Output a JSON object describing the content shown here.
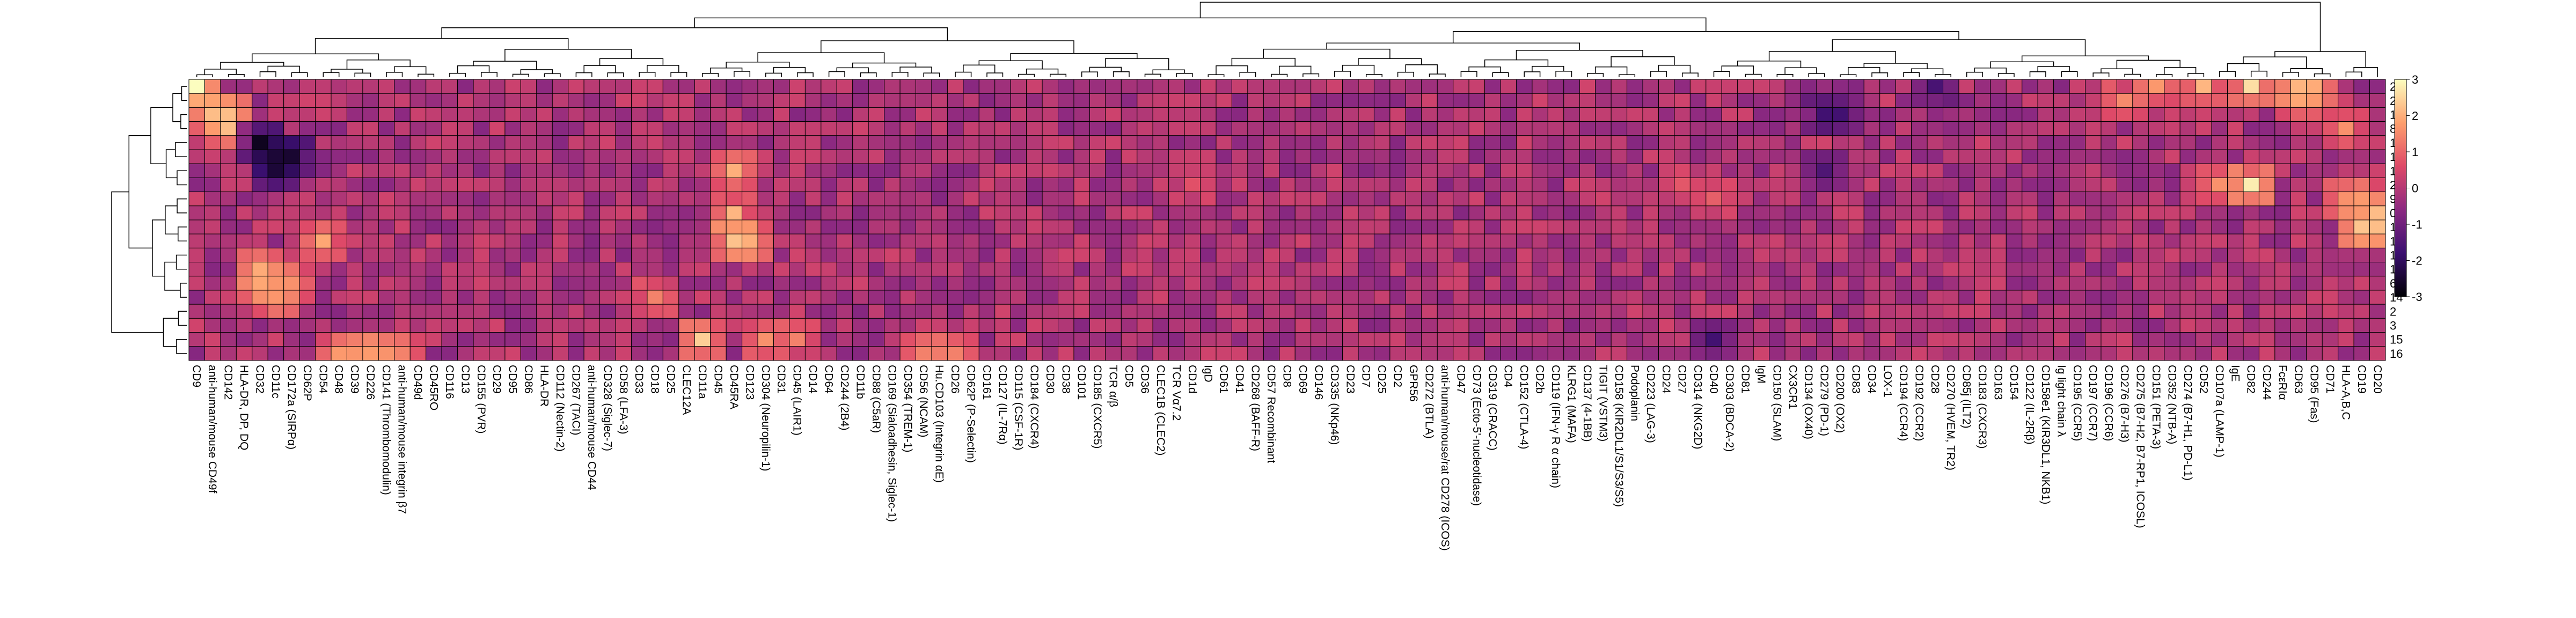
{
  "chart_data": {
    "type": "heatmap",
    "title": "",
    "xlabel": "",
    "ylabel": "",
    "colorbar": {
      "ticks": [
        "3",
        "2",
        "1",
        "0",
        "-1",
        "-2",
        "-3"
      ],
      "range": [
        -3,
        3
      ],
      "colors": [
        "#000004",
        "#3b0f70",
        "#8c2981",
        "#de4968",
        "#fe9f6d",
        "#fcfdbf"
      ]
    },
    "rows": [
      "20",
      "21",
      "17",
      "8",
      "18",
      "1",
      "12",
      "22",
      "9",
      "0",
      "10",
      "13",
      "19",
      "11",
      "6",
      "14",
      "2",
      "3",
      "15",
      "16"
    ],
    "columns": [
      "CD9",
      "anti-human/mouse CD49f",
      "CD142",
      "HLA-DR, DP, DQ",
      "CD32",
      "CD11c",
      "CD172a (SIRPα)",
      "CD62P",
      "CD54",
      "CD48",
      "CD39",
      "CD226",
      "CD141 (Thrombomodulin)",
      "anti-human/mouse integrin β7",
      "CD49d",
      "CD45RO",
      "CD116",
      "CD13",
      "CD155 (PVR)",
      "CD29",
      "CD95",
      "CD86",
      "HLA-DR",
      "CD112 (Nectin-2)",
      "CD267 (TACI)",
      "anti-human/mouse CD44",
      "CD328 (Siglec-7)",
      "CD58 (LFA-3)",
      "CD33",
      "CD18",
      "CD25",
      "CLEC12A",
      "CD11a",
      "CD45",
      "CD45RA",
      "CD123",
      "CD304 (Neuropilin-1)",
      "CD31",
      "CD45 (LAIR1)",
      "CD14",
      "CD64",
      "CD244 (2B4)",
      "CD11b",
      "CD88 (C5aR)",
      "CD169 (Sialoadhesin, Siglec-1)",
      "CD354 (TREM-1)",
      "CD56 (NCAM)",
      "Hu.CD103 (Integrin αE)",
      "CD26",
      "CD62P (P-Selectin)",
      "CD161",
      "CD127 (IL-7Rα)",
      "CD115 (CSF-1R)",
      "CD184 (CXCR4)",
      "CD30",
      "CD38",
      "CD101",
      "CD185 (CXCR5)",
      "TCR α/β",
      "CD5",
      "CD36",
      "CLEC1B (CLEC2)",
      "TCR Vα7.2",
      "CD1d",
      "IgD",
      "CD61",
      "CD41",
      "CD268 (BAFF-R)",
      "CD57 Recombinant",
      "CD8",
      "CD69",
      "CD146",
      "CD335 (NKp46)",
      "CD23",
      "CD7",
      "CD25",
      "CD2",
      "GPR56",
      "CD272 (BTLA)",
      "anti-human/mouse/rat CD278 (ICOS)",
      "CD47",
      "CD73 (Ecto-5'-nucleotidase)",
      "CD319 (CRACC)",
      "CD4",
      "CD152 (CTLA-4)",
      "CD2b",
      "CD119 (IFN-γ R α chain)",
      "KLRG1 (MAFA)",
      "CD137 (4-1BB)",
      "TIGIT (VSTM3)",
      "CD158 (KIR2DL1/S1/S3/S5)",
      "Podoplanin",
      "CD223 (LAG-3)",
      "CD24",
      "CD27",
      "CD314 (NKG2D)",
      "CD40",
      "CD303 (BDCA-2)",
      "CD81",
      "IgM",
      "CD150 (SLAM)",
      "CX3CR1",
      "CD134 (OX40)",
      "CD279 (PD-1)",
      "CD200 (OX2)",
      "CD83",
      "CD34",
      "LOX-1",
      "CD194 (CCR4)",
      "CD192 (CCR2)",
      "CD28",
      "CD270 (HVEM, TR2)",
      "CD85j (ILT2)",
      "CD183 (CXCR3)",
      "CD163",
      "CD154",
      "CD122 (IL-2Rβ)",
      "CD158e1 (KIR3DL1, NKB1)",
      "Ig light chain λ",
      "CD195 (CCR5)",
      "CD197 (CCR7)",
      "CD196 (CCR6)",
      "CD276 (B7-H3)",
      "CD275 (B7-H2, B7-RP1, ICOSL)",
      "CD151 (PETA-3)",
      "CD352 (NTB-A)",
      "CD274 (B7-H1, PD-L1)",
      "CD52",
      "CD107a (LAMP-1)",
      "IgE",
      "CD82",
      "CD244",
      "FcεRIα",
      "CD63",
      "CD95 (Fas)",
      "CD71",
      "HLA-A,B,C",
      "CD19",
      "CD20"
    ],
    "hotspots": [
      {
        "row": "20",
        "col": "CD9",
        "value": 3.0
      },
      {
        "row": "17",
        "col": "anti-human/mouse CD49f",
        "value": 2.6
      },
      {
        "row": "8",
        "col": "CD142",
        "value": 2.4
      },
      {
        "row": "17",
        "col": "CD142",
        "value": 2.2
      },
      {
        "row": "18",
        "col": "CD32",
        "value": -2.8
      },
      {
        "row": "1",
        "col": "CD11c",
        "value": -2.9
      },
      {
        "row": "12",
        "col": "CD11c",
        "value": -2.6
      },
      {
        "row": "1",
        "col": "CD172a (SIRPα)",
        "value": -2.5
      },
      {
        "row": "6",
        "col": "CD11c",
        "value": 2.3
      },
      {
        "row": "14",
        "col": "CD11c",
        "value": 2.1
      },
      {
        "row": "11",
        "col": "CD32",
        "value": 2.2
      },
      {
        "row": "6",
        "col": "CD32",
        "value": 1.9
      },
      {
        "row": "6",
        "col": "CD172a (SIRPα)",
        "value": 1.6
      },
      {
        "row": "13",
        "col": "CD54",
        "value": 1.9
      },
      {
        "row": "16",
        "col": "CD48",
        "value": 1.8
      },
      {
        "row": "16",
        "col": "CD39",
        "value": 1.8
      },
      {
        "row": "16",
        "col": "CD226",
        "value": 1.7
      },
      {
        "row": "16",
        "col": "CD141 (Thrombomodulin)",
        "value": 2.0
      },
      {
        "row": "16",
        "col": "anti-human/mouse integrin β7",
        "value": 1.4
      },
      {
        "row": "15",
        "col": "CD11a",
        "value": 2.4
      },
      {
        "row": "14",
        "col": "CD18",
        "value": 1.4
      },
      {
        "row": "13",
        "col": "CD45RA",
        "value": 2.7
      },
      {
        "row": "0",
        "col": "CD45RA",
        "value": 2.1
      },
      {
        "row": "12",
        "col": "CD45RA",
        "value": 2.0
      },
      {
        "row": "13",
        "col": "CD123",
        "value": 2.0
      },
      {
        "row": "15",
        "col": "CD304 (Neuropilin-1)",
        "value": 1.6
      },
      {
        "row": "16",
        "col": "CD26",
        "value": 1.6
      },
      {
        "row": "16",
        "col": "CD56 (NCAM)",
        "value": 1.6
      },
      {
        "row": "16",
        "col": "Hu.CD103 (Integrin αE)",
        "value": 1.3
      },
      {
        "row": "15",
        "col": "CD45 (LAIR1)",
        "value": 1.4
      },
      {
        "row": "22",
        "col": "CD1d",
        "value": 0.7
      },
      {
        "row": "22",
        "col": "CD27",
        "value": 0.8
      },
      {
        "row": "9",
        "col": "CD40",
        "value": 0.9
      },
      {
        "row": "20",
        "col": "CD151 (PETA-3)",
        "value": 1.7
      },
      {
        "row": "21",
        "col": "CD276 (B7-H3)",
        "value": 1.5
      },
      {
        "row": "20",
        "col": "CD52",
        "value": 2.1
      },
      {
        "row": "20",
        "col": "CD82",
        "value": 2.6
      },
      {
        "row": "20",
        "col": "CD63",
        "value": 2.9
      },
      {
        "row": "20",
        "col": "CD95 (Fas)",
        "value": 2.2
      },
      {
        "row": "21",
        "col": "CD63",
        "value": 1.9
      },
      {
        "row": "22",
        "col": "CD82",
        "value": 2.8
      },
      {
        "row": "22",
        "col": "CD107a (LAMP-1)",
        "value": 1.6
      },
      {
        "row": "8",
        "col": "HLA-A,B,C",
        "value": 1.6
      },
      {
        "row": "9",
        "col": "CD19",
        "value": 1.8
      },
      {
        "row": "0",
        "col": "CD20",
        "value": 2.4
      },
      {
        "row": "10",
        "col": "CD19",
        "value": 2.6
      },
      {
        "row": "10",
        "col": "CD20",
        "value": 2.2
      },
      {
        "row": "9",
        "col": "HLA-A,B,C",
        "value": 1.6
      },
      {
        "row": "17",
        "col": "CD279 (PD-1)",
        "value": -1.9
      },
      {
        "row": "17",
        "col": "CD200 (OX2)",
        "value": -1.7
      },
      {
        "row": "20",
        "col": "CD28",
        "value": -1.6
      },
      {
        "row": "15",
        "col": "CD40",
        "value": -1.7
      },
      {
        "row": "12",
        "col": "CD279 (PD-1)",
        "value": -1.5
      }
    ]
  }
}
